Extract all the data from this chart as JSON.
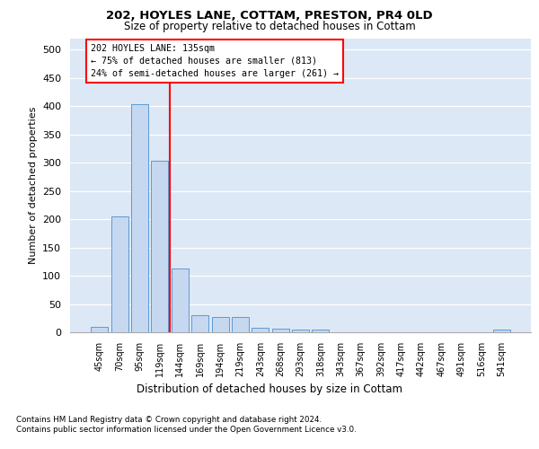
{
  "title1": "202, HOYLES LANE, COTTAM, PRESTON, PR4 0LD",
  "title2": "Size of property relative to detached houses in Cottam",
  "xlabel": "Distribution of detached houses by size in Cottam",
  "ylabel": "Number of detached properties",
  "categories": [
    "45sqm",
    "70sqm",
    "95sqm",
    "119sqm",
    "144sqm",
    "169sqm",
    "194sqm",
    "219sqm",
    "243sqm",
    "268sqm",
    "293sqm",
    "318sqm",
    "343sqm",
    "367sqm",
    "392sqm",
    "417sqm",
    "442sqm",
    "467sqm",
    "491sqm",
    "516sqm",
    "541sqm"
  ],
  "values": [
    10,
    205,
    403,
    303,
    112,
    30,
    27,
    27,
    8,
    7,
    5,
    4,
    0,
    0,
    0,
    0,
    0,
    0,
    0,
    0,
    5
  ],
  "bar_color": "#c5d8f0",
  "bar_edge_color": "#5b9bd5",
  "annotation_title": "202 HOYLES LANE: 135sqm",
  "annotation_line1": "← 75% of detached houses are smaller (813)",
  "annotation_line2": "24% of semi-detached houses are larger (261) →",
  "footnote1": "Contains HM Land Registry data © Crown copyright and database right 2024.",
  "footnote2": "Contains public sector information licensed under the Open Government Licence v3.0.",
  "ylim": [
    0,
    520
  ],
  "yticks": [
    0,
    50,
    100,
    150,
    200,
    250,
    300,
    350,
    400,
    450,
    500
  ],
  "background_color": "#ffffff",
  "plot_bg_color": "#dce8f5"
}
